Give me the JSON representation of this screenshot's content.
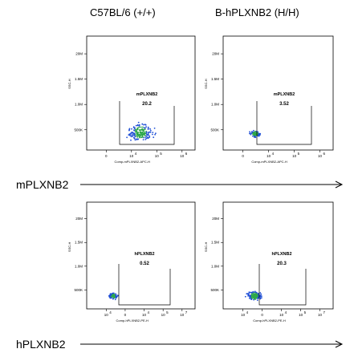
{
  "header": {
    "col_left": "C57BL/6 (+/+)",
    "col_right": "B-hPLXNB2 (H/H)"
  },
  "rows": {
    "row1_label": "mPLXNB2",
    "row2_label": "hPLXNB2"
  },
  "chart_data": [
    {
      "type": "scatter",
      "strain": "C57BL/6 (+/+)",
      "ylabel": "SSC-H",
      "xlabel": "Comp-mPLXNB2-APC-H",
      "y_ticks": [
        "500K",
        "1.0M",
        "1.5M",
        "20M"
      ],
      "x_ticks": [
        "0",
        "10",
        "10",
        "10"
      ],
      "x_tick_exps": [
        "",
        "4",
        "5",
        "6"
      ],
      "gate": {
        "name": "mPLXNB2",
        "percent": "20.2"
      },
      "colors": {
        "cluster": "#1f4fd6",
        "core": "#2ea84a"
      }
    },
    {
      "type": "scatter",
      "strain": "B-hPLXNB2 (H/H)",
      "ylabel": "SSC-H",
      "xlabel": "Comp-mPLXNB2-APC-H",
      "y_ticks": [
        "500K",
        "1.0M",
        "1.5M",
        "20M"
      ],
      "x_ticks": [
        "0",
        "10",
        "10",
        "10"
      ],
      "x_tick_exps": [
        "",
        "4",
        "5",
        "6"
      ],
      "gate": {
        "name": "mPLXNB2",
        "percent": "3.52"
      },
      "colors": {
        "cluster": "#1f4fd6",
        "core": "#2ea84a"
      }
    },
    {
      "type": "scatter",
      "strain": "C57BL/6 (+/+)",
      "ylabel": "SSC-H",
      "xlabel": "Comp-hPLXNB2-PE-H",
      "y_ticks": [
        "500K",
        "1.0M",
        "1.5M",
        "20M"
      ],
      "x_ticks": [
        "10",
        "0",
        "10",
        "10",
        "10"
      ],
      "x_tick_exps": [
        "4",
        "",
        "4",
        "5",
        "7"
      ],
      "gate": {
        "name": "hPLXNB2",
        "percent": "0.52"
      },
      "colors": {
        "cluster": "#1f4fd6",
        "core": "#2ea84a"
      }
    },
    {
      "type": "scatter",
      "strain": "B-hPLXNB2 (H/H)",
      "ylabel": "SSC-H",
      "xlabel": "Comp-hPLXNB2-PE-H",
      "y_ticks": [
        "500K",
        "1.0M",
        "1.5M",
        "20M"
      ],
      "x_ticks": [
        "10",
        "0",
        "10",
        "10",
        "10"
      ],
      "x_tick_exps": [
        "4",
        "",
        "4",
        "5",
        "7"
      ],
      "gate": {
        "name": "hPLXNB2",
        "percent": "20.3"
      },
      "colors": {
        "cluster": "#1f4fd6",
        "core": "#2ea84a"
      }
    }
  ]
}
